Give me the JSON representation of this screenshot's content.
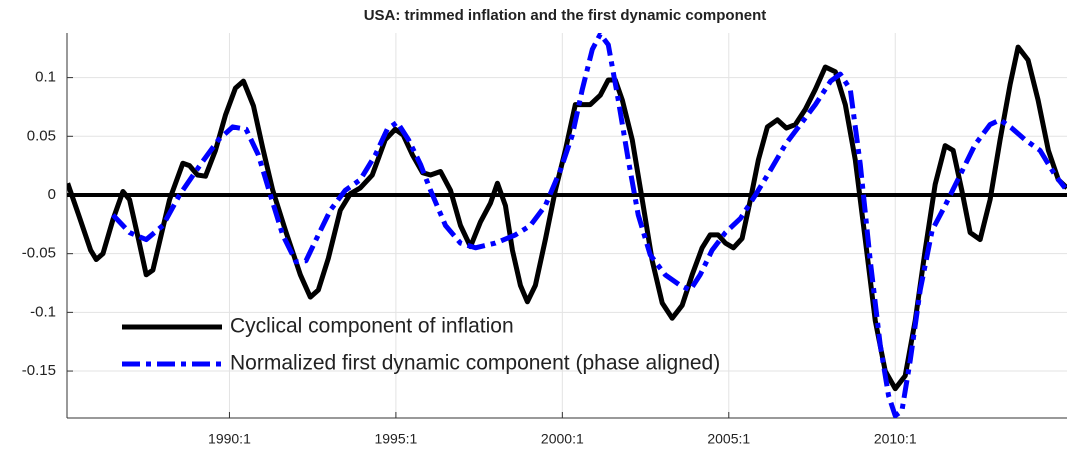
{
  "chart_data": {
    "type": "line",
    "title": "USA: trimmed inflation and the first dynamic component",
    "xlim": [
      1985.12,
      2015.16
    ],
    "ylim": [
      -0.19,
      0.138
    ],
    "xticks": [
      {
        "value": 1990,
        "label": "1990:1"
      },
      {
        "value": 1995,
        "label": "1995:1"
      },
      {
        "value": 2000,
        "label": "2000:1"
      },
      {
        "value": 2005,
        "label": "2005:1"
      },
      {
        "value": 2010,
        "label": "2010:1"
      }
    ],
    "yticks": [
      -0.15,
      -0.1,
      -0.05,
      0,
      0.05,
      0.1
    ],
    "grid": true,
    "hline": 0,
    "legend": "lower left",
    "series": [
      {
        "name": "Cyclical component of inflation",
        "color": "#000000",
        "style": "solid",
        "x": [
          1985.14,
          1985.47,
          1985.83,
          1986.0,
          1986.2,
          1986.5,
          1986.8,
          1987.0,
          1987.27,
          1987.5,
          1987.7,
          1988.2,
          1988.6,
          1988.8,
          1989.04,
          1989.28,
          1989.58,
          1989.88,
          1990.18,
          1990.42,
          1990.72,
          1991.0,
          1991.3,
          1991.68,
          1992.13,
          1992.43,
          1992.67,
          1992.97,
          1993.33,
          1993.63,
          1993.93,
          1994.29,
          1994.68,
          1994.98,
          1995.22,
          1995.5,
          1995.8,
          1996.04,
          1996.34,
          1996.64,
          1996.94,
          1997.24,
          1997.54,
          1997.84,
          1998.05,
          1998.29,
          1998.5,
          1998.74,
          1998.95,
          1999.19,
          1999.49,
          1999.79,
          2000.09,
          2000.39,
          2000.84,
          2001.14,
          2001.38,
          2001.59,
          2001.8,
          2002.1,
          2002.4,
          2002.7,
          2003.0,
          2003.3,
          2003.6,
          2003.9,
          2004.2,
          2004.44,
          2004.68,
          2004.9,
          2005.14,
          2005.4,
          2005.65,
          2005.89,
          2006.16,
          2006.46,
          2006.73,
          2007.0,
          2007.3,
          2007.6,
          2007.9,
          2008.2,
          2008.5,
          2008.8,
          2009.1,
          2009.4,
          2009.7,
          2010.0,
          2010.3,
          2010.6,
          2010.9,
          2011.2,
          2011.5,
          2011.74,
          2012.0,
          2012.25,
          2012.55,
          2012.85,
          2013.15,
          2013.45,
          2013.69,
          2013.99,
          2014.29,
          2014.6,
          2014.9,
          2015.16
        ],
        "values": [
          0.01,
          -0.017,
          -0.047,
          -0.055,
          -0.05,
          -0.021,
          0.003,
          -0.004,
          -0.038,
          -0.068,
          -0.064,
          -0.004,
          0.027,
          0.025,
          0.017,
          0.016,
          0.038,
          0.068,
          0.091,
          0.097,
          0.076,
          0.04,
          0.004,
          -0.03,
          -0.068,
          -0.087,
          -0.081,
          -0.054,
          -0.013,
          0.001,
          0.006,
          0.017,
          0.047,
          0.056,
          0.051,
          0.034,
          0.019,
          0.017,
          0.02,
          0.004,
          -0.026,
          -0.044,
          -0.023,
          -0.007,
          0.01,
          -0.009,
          -0.047,
          -0.077,
          -0.091,
          -0.077,
          -0.038,
          0.004,
          0.038,
          0.077,
          0.077,
          0.085,
          0.098,
          0.098,
          0.081,
          0.047,
          -0.004,
          -0.056,
          -0.092,
          -0.105,
          -0.094,
          -0.068,
          -0.045,
          -0.034,
          -0.034,
          -0.041,
          -0.045,
          -0.037,
          -0.004,
          0.03,
          0.058,
          0.064,
          0.057,
          0.06,
          0.073,
          0.09,
          0.109,
          0.105,
          0.077,
          0.03,
          -0.038,
          -0.107,
          -0.15,
          -0.165,
          -0.154,
          -0.107,
          -0.047,
          0.009,
          0.042,
          0.038,
          0.004,
          -0.032,
          -0.038,
          -0.004,
          0.047,
          0.094,
          0.126,
          0.115,
          0.081,
          0.038,
          0.013,
          0.006
        ]
      },
      {
        "name": "Normalized first dynamic component (phase aligned)",
        "color": "#0000ff",
        "style": "dashdot",
        "x": [
          1986.5,
          1987.0,
          1987.5,
          1988.0,
          1988.5,
          1989.13,
          1989.67,
          1990.1,
          1990.5,
          1990.87,
          1991.23,
          1991.6,
          1992.0,
          1992.3,
          1992.67,
          1993.03,
          1993.48,
          1993.93,
          1994.38,
          1994.74,
          1995.04,
          1995.38,
          1995.74,
          1996.04,
          1996.49,
          1996.94,
          1997.39,
          1997.99,
          1998.59,
          1999.04,
          1999.49,
          1999.94,
          2000.3,
          2000.6,
          2000.9,
          2001.14,
          2001.38,
          2001.68,
          2001.98,
          2002.28,
          2002.64,
          2003.09,
          2003.54,
          2003.84,
          2004.14,
          2004.5,
          2004.9,
          2005.35,
          2005.8,
          2006.25,
          2006.7,
          2007.15,
          2007.6,
          2008.06,
          2008.35,
          2008.65,
          2008.95,
          2009.25,
          2009.55,
          2009.8,
          2010.0,
          2010.2,
          2010.45,
          2010.75,
          2011.11,
          2011.5,
          2011.95,
          2012.4,
          2012.85,
          2013.15,
          2013.5,
          2013.9,
          2014.35,
          2014.8,
          2015.1
        ],
        "values": [
          -0.017,
          -0.032,
          -0.038,
          -0.026,
          0,
          0.026,
          0.047,
          0.058,
          0.056,
          0.034,
          0,
          -0.034,
          -0.057,
          -0.056,
          -0.034,
          -0.013,
          0.004,
          0.013,
          0.034,
          0.056,
          0.062,
          0.047,
          0.026,
          0.004,
          -0.026,
          -0.041,
          -0.045,
          -0.041,
          -0.034,
          -0.026,
          -0.009,
          0.021,
          0.051,
          0.09,
          0.124,
          0.137,
          0.128,
          0.081,
          0.03,
          -0.017,
          -0.051,
          -0.068,
          -0.077,
          -0.081,
          -0.068,
          -0.047,
          -0.032,
          -0.02,
          0,
          0.021,
          0.043,
          0.06,
          0.077,
          0.097,
          0.103,
          0.09,
          0.026,
          -0.056,
          -0.128,
          -0.171,
          -0.188,
          -0.184,
          -0.141,
          -0.081,
          -0.03,
          -0.009,
          0.017,
          0.043,
          0.06,
          0.064,
          0.057,
          0.047,
          0.038,
          0.017,
          0.006
        ]
      }
    ]
  }
}
